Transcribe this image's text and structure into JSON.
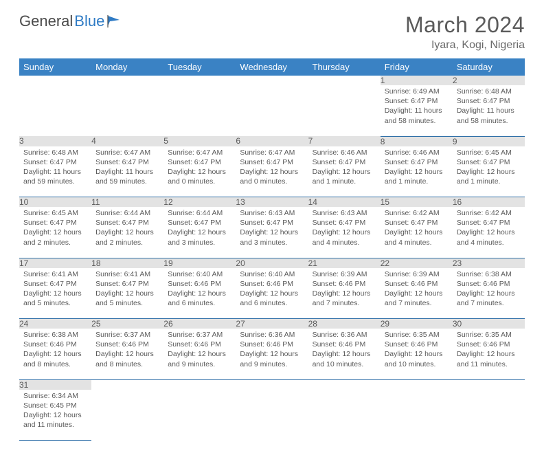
{
  "logo": {
    "text1": "General",
    "text2": "Blue"
  },
  "title": "March 2024",
  "location": "Iyara, Kogi, Nigeria",
  "colors": {
    "header_bg": "#3a82c4",
    "header_text": "#ffffff",
    "daynum_bg": "#e3e3e3",
    "cell_border": "#2f6fa8",
    "text": "#5a5a5a",
    "logo_blue": "#2f7bc5"
  },
  "weekdays": [
    "Sunday",
    "Monday",
    "Tuesday",
    "Wednesday",
    "Thursday",
    "Friday",
    "Saturday"
  ],
  "weeks": [
    [
      null,
      null,
      null,
      null,
      null,
      {
        "n": "1",
        "sr": "6:49 AM",
        "ss": "6:47 PM",
        "dl": "11 hours and 58 minutes."
      },
      {
        "n": "2",
        "sr": "6:48 AM",
        "ss": "6:47 PM",
        "dl": "11 hours and 58 minutes."
      }
    ],
    [
      {
        "n": "3",
        "sr": "6:48 AM",
        "ss": "6:47 PM",
        "dl": "11 hours and 59 minutes."
      },
      {
        "n": "4",
        "sr": "6:47 AM",
        "ss": "6:47 PM",
        "dl": "11 hours and 59 minutes."
      },
      {
        "n": "5",
        "sr": "6:47 AM",
        "ss": "6:47 PM",
        "dl": "12 hours and 0 minutes."
      },
      {
        "n": "6",
        "sr": "6:47 AM",
        "ss": "6:47 PM",
        "dl": "12 hours and 0 minutes."
      },
      {
        "n": "7",
        "sr": "6:46 AM",
        "ss": "6:47 PM",
        "dl": "12 hours and 1 minute."
      },
      {
        "n": "8",
        "sr": "6:46 AM",
        "ss": "6:47 PM",
        "dl": "12 hours and 1 minute."
      },
      {
        "n": "9",
        "sr": "6:45 AM",
        "ss": "6:47 PM",
        "dl": "12 hours and 1 minute."
      }
    ],
    [
      {
        "n": "10",
        "sr": "6:45 AM",
        "ss": "6:47 PM",
        "dl": "12 hours and 2 minutes."
      },
      {
        "n": "11",
        "sr": "6:44 AM",
        "ss": "6:47 PM",
        "dl": "12 hours and 2 minutes."
      },
      {
        "n": "12",
        "sr": "6:44 AM",
        "ss": "6:47 PM",
        "dl": "12 hours and 3 minutes."
      },
      {
        "n": "13",
        "sr": "6:43 AM",
        "ss": "6:47 PM",
        "dl": "12 hours and 3 minutes."
      },
      {
        "n": "14",
        "sr": "6:43 AM",
        "ss": "6:47 PM",
        "dl": "12 hours and 4 minutes."
      },
      {
        "n": "15",
        "sr": "6:42 AM",
        "ss": "6:47 PM",
        "dl": "12 hours and 4 minutes."
      },
      {
        "n": "16",
        "sr": "6:42 AM",
        "ss": "6:47 PM",
        "dl": "12 hours and 4 minutes."
      }
    ],
    [
      {
        "n": "17",
        "sr": "6:41 AM",
        "ss": "6:47 PM",
        "dl": "12 hours and 5 minutes."
      },
      {
        "n": "18",
        "sr": "6:41 AM",
        "ss": "6:47 PM",
        "dl": "12 hours and 5 minutes."
      },
      {
        "n": "19",
        "sr": "6:40 AM",
        "ss": "6:46 PM",
        "dl": "12 hours and 6 minutes."
      },
      {
        "n": "20",
        "sr": "6:40 AM",
        "ss": "6:46 PM",
        "dl": "12 hours and 6 minutes."
      },
      {
        "n": "21",
        "sr": "6:39 AM",
        "ss": "6:46 PM",
        "dl": "12 hours and 7 minutes."
      },
      {
        "n": "22",
        "sr": "6:39 AM",
        "ss": "6:46 PM",
        "dl": "12 hours and 7 minutes."
      },
      {
        "n": "23",
        "sr": "6:38 AM",
        "ss": "6:46 PM",
        "dl": "12 hours and 7 minutes."
      }
    ],
    [
      {
        "n": "24",
        "sr": "6:38 AM",
        "ss": "6:46 PM",
        "dl": "12 hours and 8 minutes."
      },
      {
        "n": "25",
        "sr": "6:37 AM",
        "ss": "6:46 PM",
        "dl": "12 hours and 8 minutes."
      },
      {
        "n": "26",
        "sr": "6:37 AM",
        "ss": "6:46 PM",
        "dl": "12 hours and 9 minutes."
      },
      {
        "n": "27",
        "sr": "6:36 AM",
        "ss": "6:46 PM",
        "dl": "12 hours and 9 minutes."
      },
      {
        "n": "28",
        "sr": "6:36 AM",
        "ss": "6:46 PM",
        "dl": "12 hours and 10 minutes."
      },
      {
        "n": "29",
        "sr": "6:35 AM",
        "ss": "6:46 PM",
        "dl": "12 hours and 10 minutes."
      },
      {
        "n": "30",
        "sr": "6:35 AM",
        "ss": "6:46 PM",
        "dl": "12 hours and 11 minutes."
      }
    ],
    [
      {
        "n": "31",
        "sr": "6:34 AM",
        "ss": "6:45 PM",
        "dl": "12 hours and 11 minutes."
      },
      null,
      null,
      null,
      null,
      null,
      null
    ]
  ],
  "labels": {
    "sunrise": "Sunrise:",
    "sunset": "Sunset:",
    "daylight": "Daylight:"
  }
}
